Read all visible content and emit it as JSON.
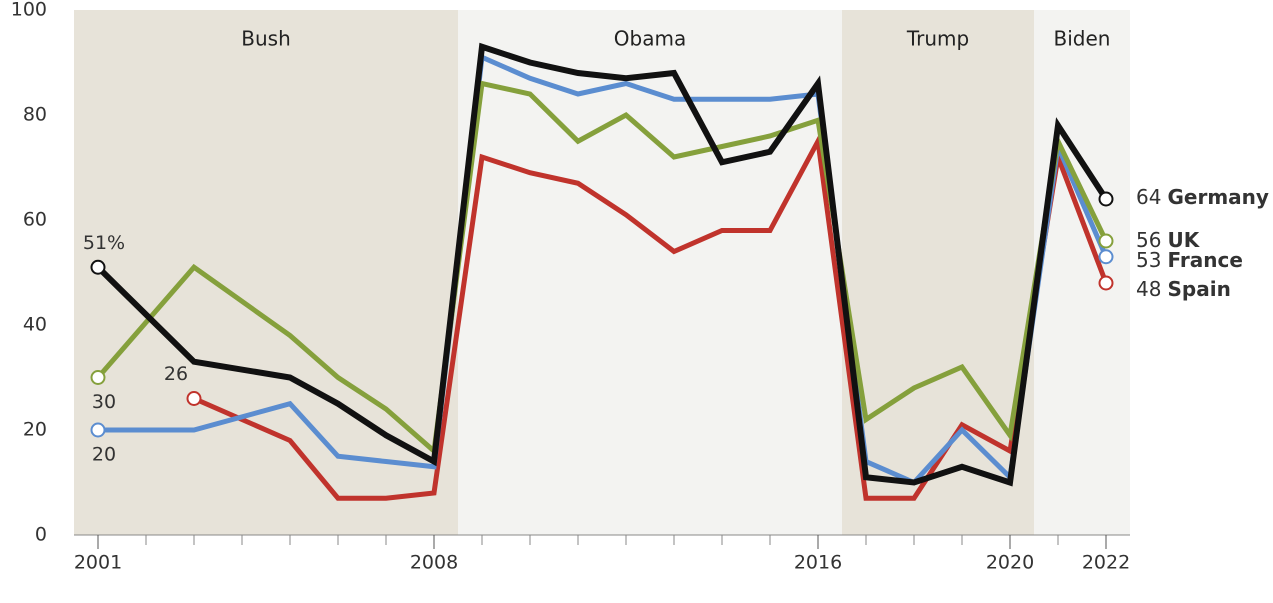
{
  "chart_data": {
    "type": "line",
    "x": [
      2001,
      2003,
      2005,
      2006,
      2007,
      2008,
      2009,
      2010,
      2011,
      2012,
      2013,
      2014,
      2015,
      2016,
      2017,
      2018,
      2019,
      2020,
      2021,
      2022
    ],
    "xlim": [
      2000.5,
      2022.5
    ],
    "xticks": [
      2001,
      2008,
      2016,
      2020,
      2022
    ],
    "xminor_ticks": [
      2002,
      2003,
      2004,
      2005,
      2006,
      2007,
      2009,
      2010,
      2011,
      2012,
      2013,
      2014,
      2015,
      2017,
      2018,
      2019,
      2021
    ],
    "ylim": [
      0,
      100
    ],
    "yticks": [
      0,
      20,
      40,
      60,
      80,
      100
    ],
    "bands": [
      {
        "label": "Bush",
        "start": 2000.5,
        "end": 2008.5,
        "color": "#e7e3d9"
      },
      {
        "label": "Obama",
        "start": 2008.5,
        "end": 2016.5,
        "color": "#f3f3f1"
      },
      {
        "label": "Trump",
        "start": 2016.5,
        "end": 2020.5,
        "color": "#e7e3d9"
      },
      {
        "label": "Biden",
        "start": 2020.5,
        "end": 2022.5,
        "color": "#f3f3f1"
      }
    ],
    "series": [
      {
        "name": "Spain",
        "color": "#c0332c",
        "values": [
          null,
          26,
          18,
          7,
          7,
          8,
          72,
          69,
          67,
          61,
          54,
          58,
          58,
          75,
          7,
          7,
          21,
          16,
          72,
          48
        ]
      },
      {
        "name": "France",
        "color": "#5b8dd0",
        "values": [
          20,
          20,
          25,
          15,
          14,
          13,
          91,
          87,
          84,
          86,
          83,
          83,
          83,
          84,
          14,
          10,
          20,
          11,
          74,
          53
        ]
      },
      {
        "name": "UK",
        "color": "#85a03c",
        "values": [
          30,
          51,
          38,
          30,
          24,
          16,
          86,
          84,
          75,
          80,
          72,
          74,
          76,
          79,
          22,
          28,
          32,
          19,
          75,
          56
        ]
      },
      {
        "name": "Germany",
        "color": "#111111",
        "values": [
          51,
          33,
          30,
          25,
          19,
          14,
          93,
          90,
          88,
          87,
          88,
          71,
          73,
          86,
          11,
          10,
          13,
          10,
          78,
          64
        ],
        "value_labels": [
          "51%",
          null,
          null,
          null,
          null,
          null,
          null,
          null,
          null,
          null,
          null,
          null,
          null,
          null,
          null,
          null,
          null,
          null,
          null,
          null
        ]
      }
    ]
  }
}
